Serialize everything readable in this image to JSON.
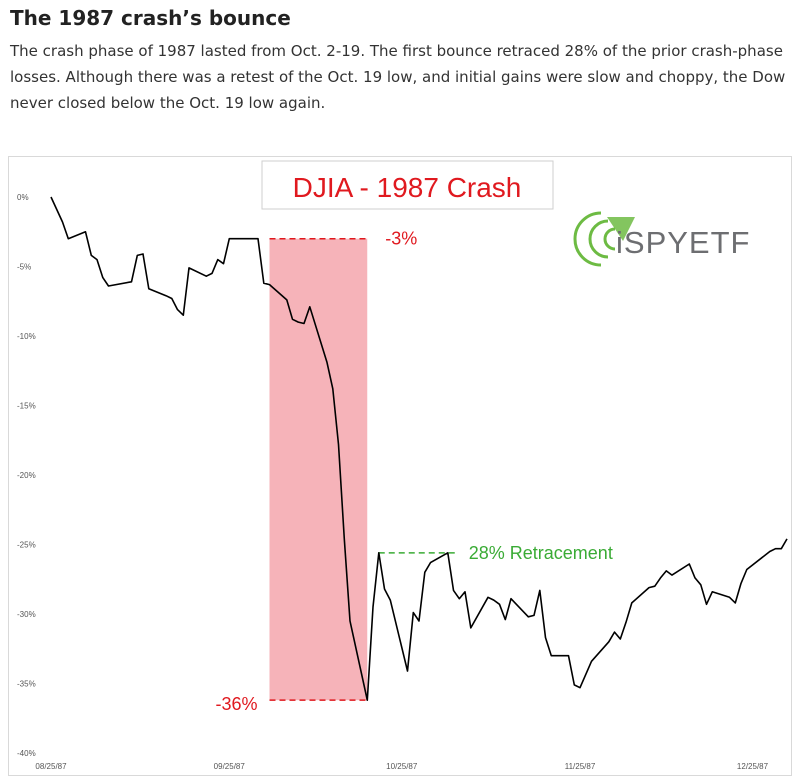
{
  "article": {
    "title": "The 1987 crash’s bounce",
    "description": "The crash phase of 1987 lasted from Oct. 2-19. The first bounce retraced 28% of the prior crash-phase losses. Although there was a retest of the Oct. 19 low, and initial gains were slow and choppy, the Dow never closed below the Oct. 19 low again."
  },
  "logo": {
    "text": "iSPYETF",
    "colors": {
      "green": "#6dbb43",
      "gray": "#6d6e71"
    }
  },
  "chart_data": {
    "type": "line",
    "title": "DJIA - 1987 Crash",
    "title_color": "#e0191f",
    "xlabel": "",
    "ylabel": "",
    "y_tick_labels": [
      "0%",
      "-5%",
      "-10%",
      "-15%",
      "-20%",
      "-25%",
      "-30%",
      "-35%",
      "-40%"
    ],
    "y_ticks": [
      0,
      -5,
      -10,
      -15,
      -20,
      -25,
      -30,
      -35,
      -40
    ],
    "ylim": [
      -40,
      0
    ],
    "x_tick_labels": [
      "08/25/87",
      "09/25/87",
      "10/25/87",
      "11/25/87",
      "12/25/87"
    ],
    "x_ticks": [
      "1987-08-25",
      "1987-09-25",
      "1987-10-25",
      "1987-11-25",
      "1987-12-25"
    ],
    "xlim": [
      "1987-08-25",
      "1987-12-31"
    ],
    "grid": false,
    "line_color": "#000000",
    "series": [
      {
        "x": [
          "1987-08-25",
          "1987-08-27",
          "1987-08-28",
          "1987-08-31",
          "1987-09-01",
          "1987-09-02",
          "1987-09-03",
          "1987-09-04",
          "1987-09-08",
          "1987-09-09",
          "1987-09-10",
          "1987-09-11",
          "1987-09-14",
          "1987-09-15",
          "1987-09-16",
          "1987-09-17",
          "1987-09-18",
          "1987-09-21",
          "1987-09-22",
          "1987-09-23",
          "1987-09-24",
          "1987-09-25",
          "1987-09-28",
          "1987-09-29",
          "1987-09-30",
          "1987-10-01",
          "1987-10-02",
          "1987-10-05",
          "1987-10-06",
          "1987-10-07",
          "1987-10-08",
          "1987-10-09",
          "1987-10-12",
          "1987-10-13",
          "1987-10-14",
          "1987-10-15",
          "1987-10-16",
          "1987-10-19",
          "1987-10-20",
          "1987-10-21",
          "1987-10-22",
          "1987-10-23",
          "1987-10-26",
          "1987-10-27",
          "1987-10-28",
          "1987-10-29",
          "1987-10-30",
          "1987-11-02",
          "1987-11-03",
          "1987-11-04",
          "1987-11-05",
          "1987-11-06",
          "1987-11-09",
          "1987-11-10",
          "1987-11-11",
          "1987-11-12",
          "1987-11-13",
          "1987-11-16",
          "1987-11-17",
          "1987-11-18",
          "1987-11-19",
          "1987-11-20",
          "1987-11-23",
          "1987-11-24",
          "1987-11-25",
          "1987-11-27",
          "1987-11-30",
          "1987-12-01",
          "1987-12-02",
          "1987-12-03",
          "1987-12-04",
          "1987-12-07",
          "1987-12-08",
          "1987-12-09",
          "1987-12-10",
          "1987-12-11",
          "1987-12-14",
          "1987-12-15",
          "1987-12-16",
          "1987-12-17",
          "1987-12-18",
          "1987-12-21",
          "1987-12-22",
          "1987-12-23",
          "1987-12-24",
          "1987-12-28",
          "1987-12-29",
          "1987-12-30",
          "1987-12-31"
        ],
        "values": [
          0,
          -1.8,
          -3,
          -2.5,
          -4.2,
          -4.5,
          -5.8,
          -6.4,
          -6.1,
          -4.2,
          -4.1,
          -6.6,
          -7.1,
          -7.3,
          -8.1,
          -8.5,
          -5.1,
          -5.7,
          -5.5,
          -4.5,
          -4.8,
          -3.0,
          -3.0,
          -3.0,
          -3.0,
          -6.2,
          -6.3,
          -7.4,
          -8.8,
          -9.0,
          -9.1,
          -7.9,
          -11.9,
          -13.8,
          -17.8,
          -24.6,
          -30.5,
          -36.2,
          -29.5,
          -25.6,
          -28.2,
          -29.0,
          -34.1,
          -29.9,
          -30.5,
          -27.0,
          -26.3,
          -25.6,
          -28.3,
          -28.9,
          -28.4,
          -31.0,
          -28.8,
          -29.0,
          -29.3,
          -30.4,
          -28.9,
          -30.2,
          -30.1,
          -28.3,
          -31.7,
          -33.0,
          -33.0,
          -35.1,
          -35.3,
          -33.4,
          -32.0,
          -31.3,
          -31.8,
          -30.6,
          -29.2,
          -28.1,
          -28.0,
          -27.4,
          -26.9,
          -27.2,
          -26.4,
          -27.4,
          -27.9,
          -29.3,
          -28.4,
          -28.8,
          -29.2,
          -27.8,
          -26.8,
          -25.5,
          -25.3,
          -25.3,
          -24.6
        ]
      }
    ],
    "crash_band": {
      "start": "1987-10-02",
      "end": "1987-10-19",
      "color": "#f4a6ad"
    },
    "annotations": [
      {
        "label": "-3%",
        "value": -3,
        "color": "#e0191f"
      },
      {
        "label": "-36%",
        "value": -36.2,
        "color": "#e0191f"
      },
      {
        "label": "28% Retracement",
        "value": -25.6,
        "color": "#3aab35"
      }
    ]
  }
}
